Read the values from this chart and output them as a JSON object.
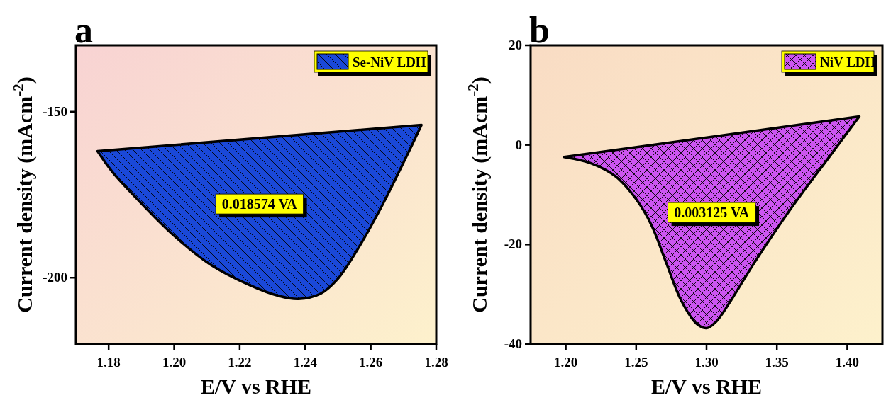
{
  "chart_data": [
    {
      "type": "area",
      "title": "a",
      "xlabel": "E/V vs RHE",
      "ylabel": "Current density (mAcm$^{-2}$)",
      "xlim": [
        1.17,
        1.28
      ],
      "xticks": [
        1.18,
        {
          "value": 1.2,
          "label": "1.20"
        },
        1.22,
        1.24,
        1.26,
        1.28
      ],
      "ylim": [
        -220,
        -130
      ],
      "yticks": [
        -200,
        -150
      ],
      "legend": "top right",
      "annotations": [
        "0.018574 VA"
      ],
      "series": [
        {
          "name": "Se-NiV LDH",
          "color": "#1a48d8",
          "x": [
            1.1766,
            1.2755,
            1.2708,
            1.2634,
            1.2559,
            1.2499,
            1.2447,
            1.2379,
            1.232,
            1.223,
            1.211,
            1.1998,
            1.1886,
            1.1811,
            1.1766
          ],
          "values": [
            -161.9,
            -154.0,
            -163.7,
            -178.4,
            -191.6,
            -200.4,
            -204.8,
            -206.4,
            -205.5,
            -202.2,
            -196.0,
            -187.2,
            -176.2,
            -168.1,
            -161.9
          ]
        }
      ]
    },
    {
      "type": "area",
      "title": "b",
      "xlabel": "E/V vs RHE",
      "ylabel": "Current density (mAcm$^{-2}$)",
      "xlim": [
        1.175,
        1.425
      ],
      "xticks": [
        {
          "value": 1.2,
          "label": "1.20"
        },
        1.25,
        {
          "value": 1.3,
          "label": "1.30"
        },
        1.35,
        {
          "value": 1.4,
          "label": "1.40"
        }
      ],
      "ylim": [
        -40,
        20
      ],
      "yticks": [
        -40,
        -20,
        0,
        20
      ],
      "legend": "top right",
      "annotations": [
        "0.003125 VA"
      ],
      "series": [
        {
          "name": "NiV LDH",
          "color": "#cc55f0",
          "x": [
            1.1988,
            1.4086,
            1.3875,
            1.3607,
            1.3339,
            1.3161,
            1.3071,
            1.3,
            1.2929,
            1.2821,
            1.2714,
            1.2607,
            1.25,
            1.2357,
            1.2179,
            1.1988
          ],
          "values": [
            -2.44,
            5.7,
            -2.3,
            -12.5,
            -23.7,
            -31.8,
            -35.4,
            -36.8,
            -35.9,
            -31.3,
            -23.7,
            -16.0,
            -10.9,
            -6.4,
            -3.7,
            -2.44
          ]
        }
      ]
    }
  ]
}
